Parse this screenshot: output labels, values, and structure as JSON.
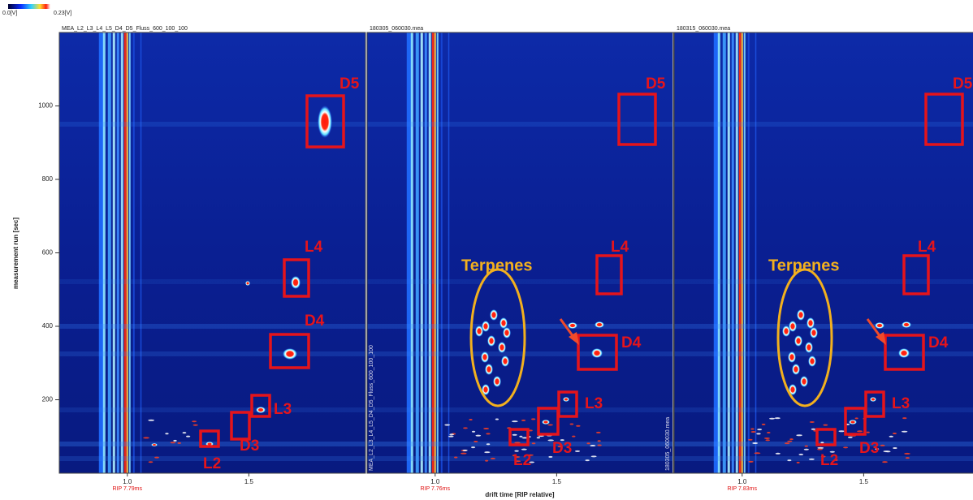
{
  "colorbar": {
    "min_label": "0.0[V]",
    "max_label": "0.23[V]"
  },
  "y_axis": {
    "label": "measurement run [sec]",
    "lim": [
      0,
      1200
    ],
    "ticks": [
      200,
      400,
      600,
      800,
      1000
    ]
  },
  "x_axis": {
    "label": "drift time [RIP relative]",
    "lim": [
      0.72,
      1.98
    ],
    "ticks": [
      {
        "value": 1,
        "label": "1.0"
      },
      {
        "value": 1.5,
        "label": "1.5"
      }
    ]
  },
  "panels": [
    {
      "title": "MEA_L2_L3_L4_L5_D4_D5_Fluss_600_100_100",
      "rip_label": "RIP 7.79ms",
      "annotations": [
        "D5",
        "L4",
        "D4",
        "L3",
        "D3",
        "L2"
      ]
    },
    {
      "title": "180305_060030.mea",
      "side_label": "MEA_L2_L3_L4_L5_D4_D5_Fluss_600_100_100",
      "rip_label": "RIP 7.76ms",
      "group_label": "Terpenes",
      "annotations": [
        "D5",
        "L4",
        "D4",
        "L3",
        "D3",
        "L2"
      ]
    },
    {
      "title": "180315_060030.mea",
      "side_label": "180305_060030.mea",
      "rip_label": "RIP 7.83ms",
      "group_label": "Terpenes",
      "annotations": [
        "D5",
        "L4",
        "D4",
        "L3",
        "D3",
        "L2"
      ]
    }
  ]
}
